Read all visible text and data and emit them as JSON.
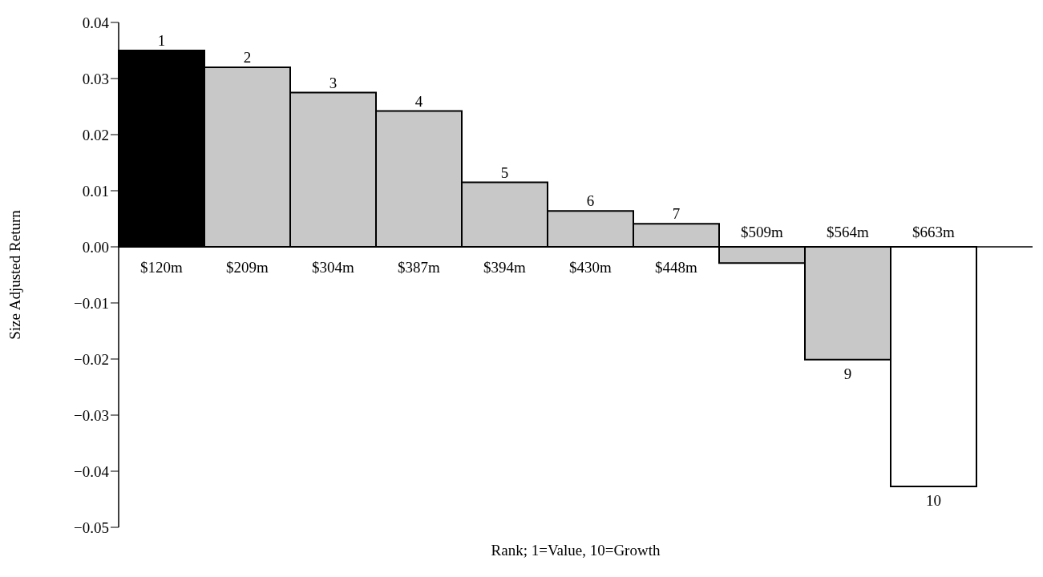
{
  "chart_data": {
    "type": "bar",
    "xlabel": "Rank; 1=Value, 10=Growth",
    "ylabel": "Size Adjusted Return",
    "categories": [
      "$120m",
      "$209m",
      "$304m",
      "$387m",
      "$394m",
      "$430m",
      "$448m",
      "$509m",
      "$564m",
      "$663m"
    ],
    "values": [
      0.035,
      0.032,
      0.0275,
      0.0242,
      0.0115,
      0.0064,
      0.0041,
      -0.0029,
      -0.0201,
      -0.0427
    ],
    "colors": [
      "#000000",
      "#c8c8c8",
      "#c8c8c8",
      "#c8c8c8",
      "#c8c8c8",
      "#c8c8c8",
      "#c8c8c8",
      "#c8c8c8",
      "#c8c8c8",
      "#ffffff"
    ],
    "ylim": [
      -0.05,
      0.04
    ],
    "yticks": [
      {
        "value": -0.05,
        "label": "−0.05"
      },
      {
        "value": -0.04,
        "label": "−0.04"
      },
      {
        "value": -0.03,
        "label": "−0.03"
      },
      {
        "value": -0.02,
        "label": "−0.02"
      },
      {
        "value": -0.01,
        "label": "−0.01"
      },
      {
        "value": 0,
        "label": "0.00"
      },
      {
        "value": 0.01,
        "label": "0.01"
      },
      {
        "value": 0.02,
        "label": "0.02"
      },
      {
        "value": 0.03,
        "label": "0.03"
      },
      {
        "value": 0.04,
        "label": "0.04"
      }
    ],
    "annotations": [
      {
        "text": "1",
        "x": "$120m",
        "y": 0.035
      },
      {
        "text": "2",
        "x": "$209m",
        "y": 0.032
      },
      {
        "text": "3",
        "x": "$304m",
        "y": 0.0275
      },
      {
        "text": "4",
        "x": "$387m",
        "y": 0.0242
      },
      {
        "text": "5",
        "x": "$394m",
        "y": 0.0115
      },
      {
        "text": "6",
        "x": "$430m",
        "y": 0.0064
      },
      {
        "text": "7",
        "x": "$448m",
        "y": 0.0041
      },
      {
        "text": "9",
        "x": "$564m",
        "y": -0.0201
      },
      {
        "text": "10",
        "x": "$663m",
        "y": -0.0427
      }
    ],
    "grid": false,
    "legend": false
  }
}
